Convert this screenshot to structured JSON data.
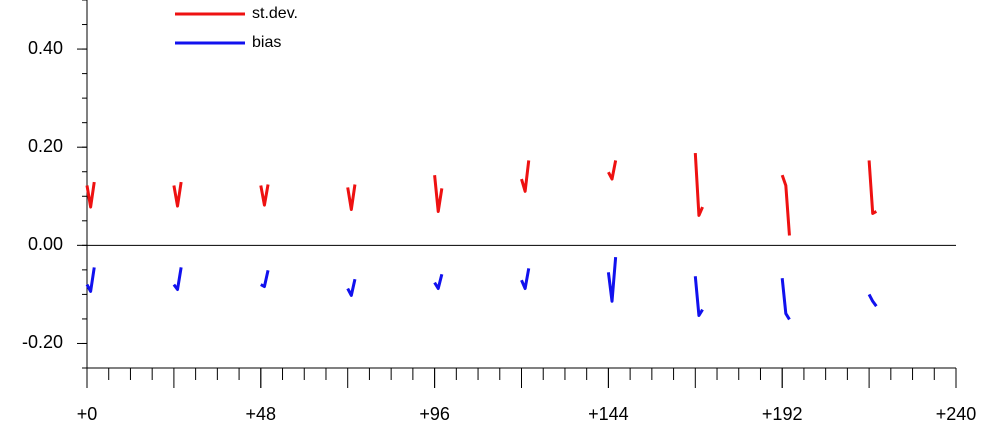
{
  "chart_data": {
    "type": "line",
    "x": [
      0,
      1,
      2,
      null,
      24,
      25,
      26,
      null,
      48,
      49,
      50,
      null,
      72,
      73,
      74,
      null,
      96,
      97,
      98,
      null,
      120,
      121,
      122,
      null,
      144,
      145,
      146,
      null,
      168,
      169,
      170,
      null,
      192,
      193,
      194,
      null,
      216,
      217,
      218
    ],
    "series": [
      {
        "name": "st.dev.",
        "color": "#ee1111",
        "values": [
          0.122,
          0.078,
          0.129,
          null,
          0.122,
          0.08,
          0.129,
          null,
          0.122,
          0.082,
          0.124,
          null,
          0.118,
          0.073,
          0.124,
          null,
          0.143,
          0.069,
          0.116,
          null,
          0.135,
          0.11,
          0.173,
          null,
          0.149,
          0.135,
          0.173,
          null,
          0.188,
          0.061,
          0.078,
          null,
          0.143,
          0.122,
          0.02,
          null,
          0.173,
          0.065,
          0.069
        ]
      },
      {
        "name": "bias",
        "color": "#1111ee",
        "values": [
          -0.08,
          -0.094,
          -0.045,
          null,
          -0.08,
          -0.09,
          -0.045,
          null,
          -0.08,
          -0.084,
          -0.051,
          null,
          -0.088,
          -0.102,
          -0.069,
          null,
          -0.076,
          -0.088,
          -0.059,
          null,
          -0.071,
          -0.088,
          -0.047,
          null,
          -0.055,
          -0.114,
          -0.024,
          null,
          -0.063,
          -0.143,
          -0.131,
          null,
          -0.067,
          -0.139,
          -0.151,
          null,
          -0.1,
          -0.114,
          -0.124
        ]
      }
    ],
    "xlim": [
      0,
      240
    ],
    "xticks": [
      {
        "value": 0,
        "label": "+0"
      },
      {
        "value": 48,
        "label": "+48"
      },
      {
        "value": 96,
        "label": "+96"
      },
      {
        "value": 144,
        "label": "+144"
      },
      {
        "value": 192,
        "label": "+192"
      },
      {
        "value": 240,
        "label": "+240"
      }
    ],
    "ylim": [
      -0.25,
      0.5
    ],
    "yticks": [
      {
        "value": -0.2,
        "label": "-0.20"
      },
      {
        "value": 0,
        "label": "0.00"
      },
      {
        "value": 0.2,
        "label": "0.20"
      },
      {
        "value": 0.4,
        "label": "0.40"
      }
    ],
    "legend": "upper left"
  }
}
